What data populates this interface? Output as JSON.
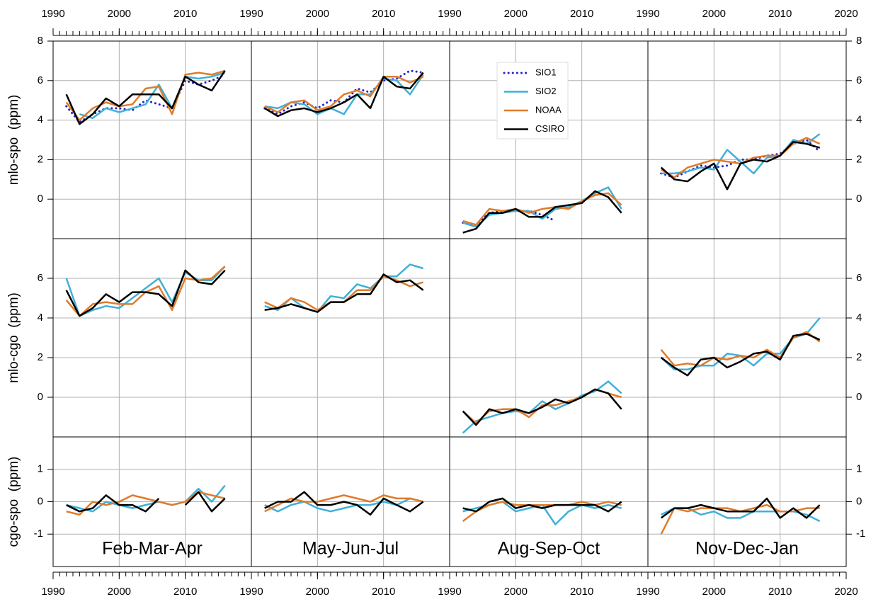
{
  "chart_data": {
    "type": "line",
    "x": [
      1992,
      1994,
      1996,
      1998,
      2000,
      2002,
      2004,
      2006,
      2008,
      2010,
      2012,
      2014,
      2016
    ],
    "xlim": [
      1990,
      2020
    ],
    "xticks": [
      1990,
      2000,
      2010,
      2020
    ],
    "grid": true,
    "legend": [
      {
        "name": "SIO1",
        "color": "#2323c8",
        "style": "dotted"
      },
      {
        "name": "SIO2",
        "color": "#3fb0d8",
        "style": "solid"
      },
      {
        "name": "NOAA",
        "color": "#e07b2a",
        "style": "solid"
      },
      {
        "name": "CSIRO",
        "color": "#000000",
        "style": "solid"
      }
    ],
    "columns": [
      "Feb-Mar-Apr",
      "May-Jun-Jul",
      "Aug-Sep-Oct",
      "Nov-Dec-Jan"
    ],
    "rows": [
      {
        "ylabel": "mlo-spo  (ppm)",
        "ylim": [
          -2,
          8
        ],
        "yticks": [
          0,
          2,
          4,
          6,
          8
        ],
        "panels": [
          {
            "series": [
              {
                "name": "SIO1",
                "values": [
                  4.7,
                  3.9,
                  4.3,
                  4.6,
                  4.6,
                  4.5,
                  5.0,
                  4.8,
                  4.6,
                  6.0,
                  5.8,
                  6.0,
                  6.3
                ]
              },
              {
                "name": "SIO2",
                "values": [
                  null,
                  4.3,
                  4.1,
                  4.6,
                  4.4,
                  4.6,
                  4.8,
                  5.8,
                  4.6,
                  6.2,
                  6.1,
                  6.2,
                  6.4
                ]
              },
              {
                "name": "NOAA",
                "values": [
                  4.9,
                  4.0,
                  4.6,
                  4.9,
                  4.7,
                  4.8,
                  5.6,
                  5.7,
                  4.3,
                  6.3,
                  6.4,
                  6.3,
                  6.5
                ]
              },
              {
                "name": "CSIRO",
                "values": [
                  5.3,
                  3.8,
                  4.3,
                  5.1,
                  4.7,
                  5.3,
                  5.3,
                  5.3,
                  4.6,
                  6.2,
                  5.8,
                  5.5,
                  6.5
                ]
              }
            ]
          },
          {
            "series": [
              {
                "name": "SIO1",
                "values": [
                  4.6,
                  4.3,
                  4.7,
                  4.9,
                  4.6,
                  5.0,
                  4.9,
                  5.6,
                  5.4,
                  6.0,
                  6.1,
                  6.5,
                  6.4
                ]
              },
              {
                "name": "SIO2",
                "values": [
                  4.7,
                  4.6,
                  4.9,
                  4.8,
                  4.3,
                  4.6,
                  4.3,
                  5.3,
                  5.3,
                  6.1,
                  6.0,
                  5.3,
                  6.3
                ]
              },
              {
                "name": "NOAA",
                "values": [
                  4.7,
                  4.4,
                  4.9,
                  5.0,
                  4.5,
                  4.7,
                  5.3,
                  5.5,
                  5.2,
                  6.2,
                  6.2,
                  5.9,
                  6.2
                ]
              },
              {
                "name": "CSIRO",
                "values": [
                  4.6,
                  4.2,
                  4.5,
                  4.6,
                  4.4,
                  4.6,
                  4.9,
                  5.3,
                  4.6,
                  6.2,
                  5.7,
                  5.6,
                  6.4
                ]
              }
            ]
          },
          {
            "series": [
              {
                "name": "SIO1",
                "values": [
                  -1.2,
                  -1.3,
                  -0.7,
                  -0.6,
                  -0.6,
                  -0.6,
                  -0.8,
                  -1.1,
                  null,
                  null,
                  null,
                  null,
                  null
                ]
              },
              {
                "name": "SIO2",
                "values": [
                  -1.2,
                  -1.4,
                  -0.8,
                  -0.7,
                  -0.6,
                  -0.6,
                  -1.0,
                  -0.5,
                  -0.4,
                  -0.1,
                  0.3,
                  0.6,
                  -0.5
                ]
              },
              {
                "name": "NOAA",
                "values": [
                  -1.1,
                  -1.3,
                  -0.5,
                  -0.6,
                  -0.5,
                  -0.7,
                  -0.5,
                  -0.4,
                  -0.5,
                  -0.1,
                  0.2,
                  0.3,
                  -0.3
                ]
              },
              {
                "name": "CSIRO",
                "values": [
                  -1.7,
                  -1.5,
                  -0.7,
                  -0.7,
                  -0.5,
                  -0.9,
                  -0.9,
                  -0.4,
                  -0.3,
                  -0.2,
                  0.4,
                  0.1,
                  -0.7
                ]
              }
            ]
          },
          {
            "series": [
              {
                "name": "SIO1",
                "values": [
                  1.3,
                  1.1,
                  1.4,
                  1.7,
                  1.6,
                  1.7,
                  2.0,
                  2.0,
                  2.2,
                  2.3,
                  2.8,
                  3.0,
                  2.4
                ]
              },
              {
                "name": "SIO2",
                "values": [
                  1.3,
                  1.3,
                  1.4,
                  1.6,
                  1.5,
                  2.5,
                  1.9,
                  1.3,
                  2.1,
                  2.2,
                  3.0,
                  2.8,
                  3.3
                ]
              },
              {
                "name": "NOAA",
                "values": [
                  1.5,
                  1.1,
                  1.6,
                  1.8,
                  2.0,
                  1.9,
                  1.8,
                  2.1,
                  2.2,
                  2.2,
                  2.8,
                  3.1,
                  2.8
                ]
              },
              {
                "name": "CSIRO",
                "values": [
                  1.6,
                  1.0,
                  0.9,
                  1.4,
                  1.8,
                  0.5,
                  1.8,
                  2.0,
                  1.9,
                  2.2,
                  2.9,
                  2.8,
                  2.6
                ]
              }
            ]
          }
        ]
      },
      {
        "ylabel": "mlo-cgo  (ppm)",
        "ylim": [
          -2,
          8
        ],
        "yticks": [
          0,
          2,
          4,
          6
        ],
        "panels": [
          {
            "series": [
              {
                "name": "SIO2",
                "values": [
                  6.0,
                  4.1,
                  4.4,
                  4.6,
                  4.5,
                  5.0,
                  5.5,
                  6.0,
                  4.8,
                  6.3,
                  5.9,
                  5.9,
                  6.6
                ]
              },
              {
                "name": "NOAA",
                "values": [
                  4.9,
                  4.1,
                  4.7,
                  4.8,
                  4.7,
                  4.7,
                  5.3,
                  5.6,
                  4.4,
                  6.0,
                  5.9,
                  6.0,
                  6.6
                ]
              },
              {
                "name": "CSIRO",
                "values": [
                  5.4,
                  4.1,
                  4.5,
                  5.2,
                  4.8,
                  5.3,
                  5.3,
                  5.2,
                  4.6,
                  6.4,
                  5.8,
                  5.7,
                  6.4
                ]
              }
            ]
          },
          {
            "series": [
              {
                "name": "SIO2",
                "values": [
                  4.6,
                  4.4,
                  5.0,
                  4.5,
                  4.3,
                  5.1,
                  5.0,
                  5.7,
                  5.5,
                  6.1,
                  6.1,
                  6.7,
                  6.5
                ]
              },
              {
                "name": "NOAA",
                "values": [
                  4.8,
                  4.5,
                  5.0,
                  4.8,
                  4.4,
                  4.8,
                  4.8,
                  5.4,
                  5.4,
                  6.1,
                  5.9,
                  5.6,
                  5.8
                ]
              },
              {
                "name": "CSIRO",
                "values": [
                  4.4,
                  4.5,
                  4.7,
                  4.5,
                  4.3,
                  4.8,
                  4.8,
                  5.2,
                  5.2,
                  6.2,
                  5.8,
                  5.9,
                  5.4
                ]
              }
            ]
          },
          {
            "series": [
              {
                "name": "SIO2",
                "values": [
                  -1.8,
                  -1.2,
                  -1.0,
                  -0.8,
                  -0.7,
                  -0.8,
                  -0.2,
                  -0.6,
                  -0.3,
                  0.1,
                  0.3,
                  0.8,
                  0.2
                ]
              },
              {
                "name": "NOAA",
                "values": [
                  -0.7,
                  -1.3,
                  -0.7,
                  -0.6,
                  -0.6,
                  -1.0,
                  -0.4,
                  -0.4,
                  -0.2,
                  0.0,
                  0.4,
                  0.2,
                  0.0
                ]
              },
              {
                "name": "CSIRO",
                "values": [
                  -0.7,
                  -1.4,
                  -0.6,
                  -0.8,
                  -0.6,
                  -0.8,
                  -0.5,
                  -0.1,
                  -0.3,
                  0.0,
                  0.4,
                  0.2,
                  -0.6
                ]
              }
            ]
          },
          {
            "series": [
              {
                "name": "SIO2",
                "values": [
                  2.0,
                  1.4,
                  1.4,
                  1.6,
                  1.6,
                  2.2,
                  2.1,
                  1.6,
                  2.2,
                  2.2,
                  3.0,
                  3.2,
                  4.0
                ]
              },
              {
                "name": "NOAA",
                "values": [
                  2.4,
                  1.6,
                  1.7,
                  1.6,
                  2.0,
                  1.9,
                  2.1,
                  2.0,
                  2.4,
                  2.0,
                  3.0,
                  3.3,
                  2.8
                ]
              },
              {
                "name": "CSIRO",
                "values": [
                  2.0,
                  1.5,
                  1.1,
                  1.9,
                  2.0,
                  1.5,
                  1.8,
                  2.2,
                  2.3,
                  1.9,
                  3.1,
                  3.2,
                  2.9
                ]
              }
            ]
          }
        ]
      },
      {
        "ylabel": "cgo-spo  (ppm)",
        "ylim": [
          -2,
          2
        ],
        "yticks": [
          -1,
          0,
          1
        ],
        "panels": [
          {
            "series": [
              {
                "name": "SIO2",
                "values": [
                  -0.1,
                  -0.2,
                  -0.3,
                  0.0,
                  -0.1,
                  -0.2,
                  -0.1,
                  0.0,
                  -0.1,
                  0.0,
                  0.4,
                  0.0,
                  0.5
                ]
              },
              {
                "name": "NOAA",
                "values": [
                  -0.3,
                  -0.4,
                  0.0,
                  -0.1,
                  0.0,
                  0.2,
                  0.1,
                  0.0,
                  -0.1,
                  0.0,
                  0.3,
                  0.2,
                  0.1
                ]
              },
              {
                "name": "CSIRO",
                "values": [
                  -0.1,
                  -0.3,
                  -0.2,
                  0.2,
                  -0.1,
                  -0.1,
                  -0.3,
                  0.1,
                  null,
                  -0.1,
                  0.3,
                  -0.3,
                  0.1
                ]
              }
            ]
          },
          {
            "series": [
              {
                "name": "SIO2",
                "values": [
                  -0.1,
                  -0.3,
                  -0.1,
                  0.0,
                  -0.2,
                  -0.3,
                  -0.2,
                  -0.1,
                  -0.1,
                  0.0,
                  -0.1,
                  0.1,
                  0.0
                ]
              },
              {
                "name": "NOAA",
                "values": [
                  -0.3,
                  -0.1,
                  0.1,
                  0.0,
                  0.0,
                  0.1,
                  0.2,
                  0.1,
                  0.0,
                  0.2,
                  0.1,
                  0.1,
                  0.0
                ]
              },
              {
                "name": "CSIRO",
                "values": [
                  -0.2,
                  0.0,
                  0.0,
                  0.3,
                  -0.1,
                  -0.1,
                  0.0,
                  -0.1,
                  -0.4,
                  0.1,
                  -0.1,
                  -0.3,
                  0.0
                ]
              }
            ]
          },
          {
            "series": [
              {
                "name": "SIO2",
                "values": [
                  -0.3,
                  -0.2,
                  -0.1,
                  0.0,
                  -0.3,
                  -0.2,
                  -0.1,
                  -0.7,
                  -0.3,
                  -0.1,
                  -0.2,
                  -0.1,
                  -0.2
                ]
              },
              {
                "name": "NOAA",
                "values": [
                  -0.6,
                  -0.3,
                  -0.1,
                  0.0,
                  -0.1,
                  -0.1,
                  -0.1,
                  -0.1,
                  -0.1,
                  0.0,
                  -0.1,
                  0.0,
                  -0.1
                ]
              },
              {
                "name": "CSIRO",
                "values": [
                  -0.2,
                  -0.3,
                  0.0,
                  0.1,
                  -0.2,
                  -0.1,
                  -0.2,
                  -0.1,
                  -0.1,
                  -0.1,
                  -0.1,
                  -0.3,
                  0.0
                ]
              }
            ]
          },
          {
            "series": [
              {
                "name": "SIO2",
                "values": [
                  -0.4,
                  -0.2,
                  -0.2,
                  -0.4,
                  -0.3,
                  -0.5,
                  -0.5,
                  -0.3,
                  -0.3,
                  -0.3,
                  -0.3,
                  -0.4,
                  -0.6
                ]
              },
              {
                "name": "NOAA",
                "values": [
                  -1.0,
                  -0.2,
                  -0.3,
                  -0.2,
                  -0.2,
                  -0.2,
                  -0.3,
                  -0.2,
                  -0.1,
                  -0.3,
                  -0.3,
                  -0.2,
                  -0.2
                ]
              },
              {
                "name": "CSIRO",
                "values": [
                  -0.5,
                  -0.2,
                  -0.2,
                  -0.1,
                  -0.2,
                  -0.3,
                  -0.3,
                  -0.3,
                  0.1,
                  -0.5,
                  -0.2,
                  -0.5,
                  -0.1
                ]
              }
            ]
          }
        ]
      }
    ]
  }
}
